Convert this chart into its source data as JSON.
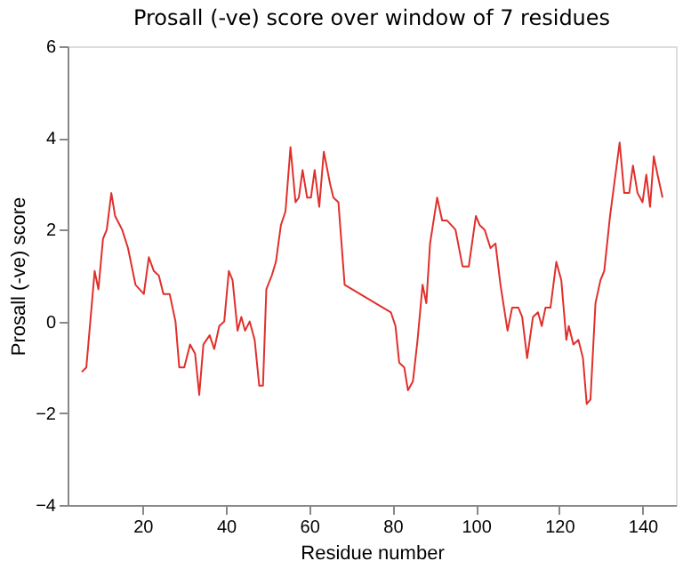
{
  "chart_data": {
    "type": "line",
    "title": "Prosall (-ve) score over window of 7 residues",
    "xlabel": "Residue number",
    "ylabel": "Prosall (-ve) score",
    "series": [
      {
        "color": "#e0302c",
        "x": [
          5.4,
          6.5,
          8.5,
          9.4,
          10.5,
          11.4,
          12.5,
          13.4,
          15.1,
          16.5,
          18.3,
          20.3,
          21.5,
          22.7,
          23.9,
          25.0,
          26.5,
          27.9,
          28.8,
          30.0,
          31.4,
          32.6,
          33.6,
          34.6,
          36.1,
          37.2,
          38.4,
          39.6,
          40.7,
          41.6,
          42.8,
          43.7,
          44.6,
          45.7,
          46.9,
          48.0,
          48.9,
          49.7,
          51.0,
          52.0,
          53.2,
          54.3,
          55.5,
          56.7,
          57.5,
          58.4,
          59.5,
          60.4,
          61.3,
          62.4,
          63.5,
          65.0,
          65.8,
          67.0,
          68.5,
          79.6,
          80.7,
          81.6,
          82.8,
          83.7,
          84.9,
          86.0,
          87.2,
          88.1,
          89.0,
          90.7,
          91.9,
          93.1,
          95.1,
          96.8,
          98.3,
          100.0,
          100.9,
          102.1,
          103.5,
          104.7,
          105.9,
          107.6,
          108.7,
          110.2,
          111.1,
          112.3,
          113.7,
          114.9,
          115.8,
          116.7,
          117.9,
          119.3,
          120.5,
          121.7,
          122.3,
          123.4,
          124.6,
          125.7,
          126.6,
          127.5,
          128.7,
          129.9,
          130.8,
          132.2,
          134.5,
          135.6,
          136.8,
          137.7,
          138.8,
          140.0,
          140.9,
          141.8,
          142.7,
          143.6,
          144.8
        ],
        "values": [
          -1.1,
          -1.0,
          1.1,
          0.7,
          1.8,
          2.0,
          2.8,
          2.3,
          2.0,
          1.6,
          0.8,
          0.6,
          1.4,
          1.1,
          1.0,
          0.6,
          0.6,
          0.0,
          -1.0,
          -1.0,
          -0.5,
          -0.7,
          -1.6,
          -0.5,
          -0.3,
          -0.6,
          -0.1,
          0.0,
          1.1,
          0.9,
          -0.2,
          0.1,
          -0.2,
          0.0,
          -0.4,
          -1.4,
          -1.4,
          0.7,
          1.0,
          1.3,
          2.1,
          2.4,
          3.8,
          2.6,
          2.7,
          3.3,
          2.7,
          2.7,
          3.3,
          2.5,
          3.7,
          3.0,
          2.7,
          2.6,
          0.8,
          0.2,
          -0.1,
          -0.9,
          -1.0,
          -1.5,
          -1.3,
          -0.4,
          0.8,
          0.4,
          1.7,
          2.7,
          2.2,
          2.2,
          2.0,
          1.2,
          1.2,
          2.3,
          2.1,
          2.0,
          1.6,
          1.7,
          0.8,
          -0.2,
          0.3,
          0.3,
          0.1,
          -0.8,
          0.1,
          0.2,
          -0.1,
          0.3,
          0.3,
          1.3,
          0.9,
          -0.4,
          -0.1,
          -0.5,
          -0.4,
          -0.8,
          -1.8,
          -1.7,
          0.4,
          0.9,
          1.1,
          2.3,
          3.9,
          2.8,
          2.8,
          3.4,
          2.8,
          2.6,
          3.2,
          2.5,
          3.6,
          3.2,
          2.7
        ]
      }
    ],
    "xlim": [
      2,
      148
    ],
    "xticks": [
      20,
      40,
      60,
      80,
      100,
      120,
      140
    ],
    "ylim": [
      -4,
      6
    ],
    "yticks": [
      -4,
      -2,
      0,
      2,
      4,
      6
    ],
    "grid": false
  }
}
